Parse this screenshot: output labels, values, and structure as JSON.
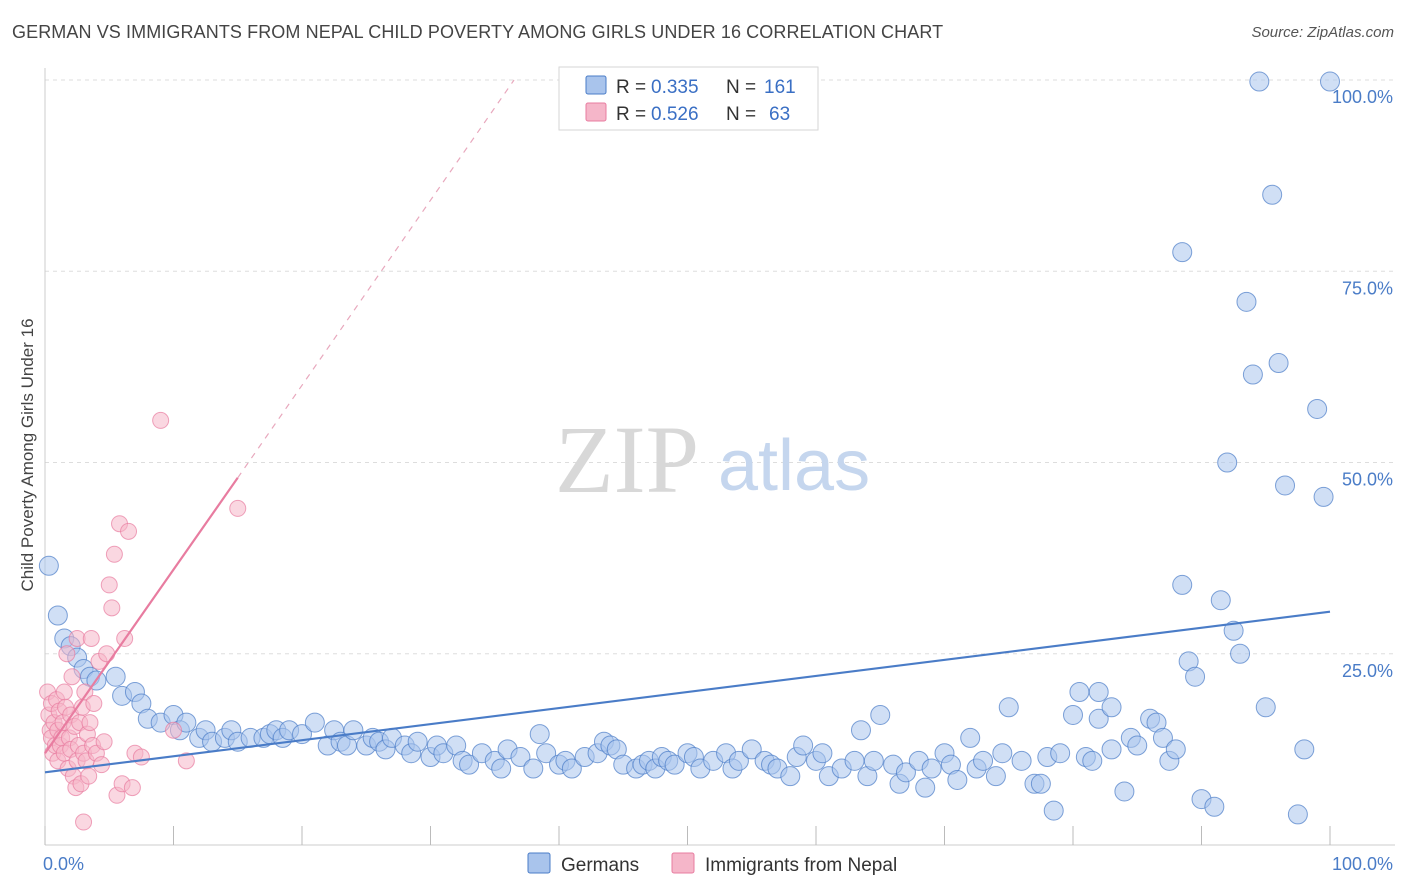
{
  "title": "GERMAN VS IMMIGRANTS FROM NEPAL CHILD POVERTY AMONG GIRLS UNDER 16 CORRELATION CHART",
  "source": "Source: ZipAtlas.com",
  "watermark": {
    "zip": "ZIP",
    "atlas": "atlas"
  },
  "colors": {
    "germans": "#4a7cc7",
    "nepal": "#e87ca0",
    "germans_fill": "#a9c4ec",
    "nepal_fill": "#f5b6c9"
  },
  "legend": {
    "rows": [
      {
        "r_label": "R =",
        "r_value": "0.335",
        "n_label": "N =",
        "n_value": "161"
      },
      {
        "r_label": "R =",
        "r_value": "0.526",
        "n_label": "N =",
        "n_value": "63"
      }
    ]
  },
  "chart_data": {
    "type": "scatter",
    "ylabel": "Child Poverty Among Girls Under 16",
    "xlim": [
      0,
      100
    ],
    "ylim": [
      0,
      100
    ],
    "yticks": [
      {
        "value": 25,
        "label": "25.0%"
      },
      {
        "value": 50,
        "label": "50.0%"
      },
      {
        "value": 75,
        "label": "75.0%"
      },
      {
        "value": 100,
        "label": "100.0%"
      }
    ],
    "xticks": [
      {
        "value": 0,
        "label": "0.0%"
      },
      {
        "value": 100,
        "label": "100.0%"
      }
    ],
    "grid": true,
    "legend_position": "top-center",
    "series": [
      {
        "name": "Germans",
        "r": 0.335,
        "n": 161,
        "trend": {
          "x": [
            0,
            100
          ],
          "y": [
            9.5,
            30.5
          ]
        },
        "points": [
          [
            0.3,
            36.5
          ],
          [
            1,
            30
          ],
          [
            1.5,
            27
          ],
          [
            2,
            26
          ],
          [
            2.5,
            24.5
          ],
          [
            3,
            23
          ],
          [
            3.5,
            22
          ],
          [
            4,
            21.5
          ],
          [
            5.5,
            22
          ],
          [
            6,
            19.5
          ],
          [
            7,
            20
          ],
          [
            7.5,
            18.5
          ],
          [
            8,
            16.5
          ],
          [
            9,
            16
          ],
          [
            10,
            17
          ],
          [
            10.5,
            15
          ],
          [
            11,
            16
          ],
          [
            12,
            14
          ],
          [
            12.5,
            15
          ],
          [
            13,
            13.5
          ],
          [
            14,
            14
          ],
          [
            14.5,
            15
          ],
          [
            15,
            13.5
          ],
          [
            16,
            14
          ],
          [
            17,
            14
          ],
          [
            17.5,
            14.5
          ],
          [
            18,
            15
          ],
          [
            18.5,
            14
          ],
          [
            19,
            15
          ],
          [
            20,
            14.5
          ],
          [
            21,
            16
          ],
          [
            22,
            13
          ],
          [
            22.5,
            15
          ],
          [
            23,
            13.5
          ],
          [
            23.5,
            13
          ],
          [
            24,
            15
          ],
          [
            25,
            13
          ],
          [
            25.5,
            14
          ],
          [
            26,
            13.5
          ],
          [
            26.5,
            12.5
          ],
          [
            27,
            14
          ],
          [
            28,
            13
          ],
          [
            28.5,
            12
          ],
          [
            29,
            13.5
          ],
          [
            30,
            11.5
          ],
          [
            30.5,
            13
          ],
          [
            31,
            12
          ],
          [
            32,
            13
          ],
          [
            32.5,
            11
          ],
          [
            33,
            10.5
          ],
          [
            34,
            12
          ],
          [
            35,
            11
          ],
          [
            35.5,
            10
          ],
          [
            36,
            12.5
          ],
          [
            37,
            11.5
          ],
          [
            38,
            10
          ],
          [
            38.5,
            14.5
          ],
          [
            39,
            12
          ],
          [
            40,
            10.5
          ],
          [
            40.5,
            11
          ],
          [
            41,
            10
          ],
          [
            42,
            11.5
          ],
          [
            43,
            12
          ],
          [
            43.5,
            13.5
          ],
          [
            44,
            13
          ],
          [
            44.5,
            12.5
          ],
          [
            45,
            10.5
          ],
          [
            46,
            10
          ],
          [
            46.5,
            10.5
          ],
          [
            47,
            11
          ],
          [
            47.5,
            10
          ],
          [
            48,
            11.5
          ],
          [
            48.5,
            11
          ],
          [
            49,
            10.5
          ],
          [
            50,
            12
          ],
          [
            50.5,
            11.5
          ],
          [
            51,
            10
          ],
          [
            52,
            11
          ],
          [
            53,
            12
          ],
          [
            53.5,
            10
          ],
          [
            54,
            11
          ],
          [
            55,
            12.5
          ],
          [
            56,
            11
          ],
          [
            56.5,
            10.5
          ],
          [
            57,
            10
          ],
          [
            58,
            9
          ],
          [
            58.5,
            11.5
          ],
          [
            59,
            13
          ],
          [
            60,
            11
          ],
          [
            60.5,
            12
          ],
          [
            61,
            9
          ],
          [
            62,
            10
          ],
          [
            63,
            11
          ],
          [
            63.5,
            15
          ],
          [
            64,
            9
          ],
          [
            64.5,
            11
          ],
          [
            65,
            17
          ],
          [
            66,
            10.5
          ],
          [
            66.5,
            8
          ],
          [
            67,
            9.5
          ],
          [
            68,
            11
          ],
          [
            68.5,
            7.5
          ],
          [
            69,
            10
          ],
          [
            70,
            12
          ],
          [
            70.5,
            10.5
          ],
          [
            71,
            8.5
          ],
          [
            72,
            14
          ],
          [
            72.5,
            10
          ],
          [
            73,
            11
          ],
          [
            74,
            9
          ],
          [
            74.5,
            12
          ],
          [
            75,
            18
          ],
          [
            76,
            11
          ],
          [
            77,
            8
          ],
          [
            77.5,
            8
          ],
          [
            78,
            11.5
          ],
          [
            78.5,
            4.5
          ],
          [
            79,
            12
          ],
          [
            80,
            17
          ],
          [
            81,
            11.5
          ],
          [
            81.5,
            11
          ],
          [
            82,
            16.5
          ],
          [
            83,
            12.5
          ],
          [
            84,
            7
          ],
          [
            84.5,
            14
          ],
          [
            85,
            13
          ],
          [
            86,
            16.5
          ],
          [
            86.5,
            16
          ],
          [
            87,
            14
          ],
          [
            87.5,
            11
          ],
          [
            88,
            12.5
          ],
          [
            88.5,
            34
          ],
          [
            89,
            24
          ],
          [
            89.5,
            22
          ],
          [
            90,
            6
          ],
          [
            91,
            5
          ],
          [
            91.5,
            32
          ],
          [
            92,
            50
          ],
          [
            92.5,
            28
          ],
          [
            93,
            25
          ],
          [
            93.5,
            71
          ],
          [
            94,
            61.5
          ],
          [
            95,
            18
          ],
          [
            95.5,
            85
          ],
          [
            96,
            63
          ],
          [
            96.5,
            47
          ],
          [
            97.5,
            4
          ],
          [
            98,
            12.5
          ],
          [
            99,
            57
          ],
          [
            99.5,
            45.5
          ],
          [
            94.5,
            99.8
          ],
          [
            100,
            99.8
          ],
          [
            88.5,
            77.5
          ],
          [
            82,
            20
          ],
          [
            83,
            18
          ],
          [
            80.5,
            20
          ]
        ]
      },
      {
        "name": "Immigrants from Nepal",
        "r": 0.526,
        "n": 63,
        "trend": {
          "x": [
            0,
            15
          ],
          "y": [
            12,
            48
          ]
        },
        "trend_dashed": {
          "x": [
            15,
            36.5
          ],
          "y": [
            48,
            100
          ]
        },
        "points": [
          [
            0.2,
            20
          ],
          [
            0.3,
            17
          ],
          [
            0.4,
            15
          ],
          [
            0.5,
            14
          ],
          [
            0.5,
            18.5
          ],
          [
            0.6,
            12
          ],
          [
            0.7,
            16
          ],
          [
            0.8,
            13
          ],
          [
            0.9,
            19
          ],
          [
            1,
            11
          ],
          [
            1,
            15
          ],
          [
            1.1,
            17.5
          ],
          [
            1.2,
            13
          ],
          [
            1.3,
            14
          ],
          [
            1.4,
            16
          ],
          [
            1.5,
            12
          ],
          [
            1.5,
            20
          ],
          [
            1.6,
            18
          ],
          [
            1.7,
            25
          ],
          [
            1.8,
            10
          ],
          [
            1.9,
            14
          ],
          [
            2,
            12.5
          ],
          [
            2,
            17
          ],
          [
            2.1,
            22
          ],
          [
            2.2,
            9
          ],
          [
            2.3,
            15.5
          ],
          [
            2.4,
            7.5
          ],
          [
            2.5,
            11
          ],
          [
            2.5,
            27
          ],
          [
            2.6,
            13
          ],
          [
            2.7,
            16
          ],
          [
            2.8,
            8
          ],
          [
            2.9,
            18
          ],
          [
            3,
            12
          ],
          [
            3,
            3
          ],
          [
            3.1,
            20
          ],
          [
            3.2,
            11
          ],
          [
            3.3,
            14.5
          ],
          [
            3.4,
            9
          ],
          [
            3.5,
            16
          ],
          [
            3.6,
            27
          ],
          [
            3.7,
            13
          ],
          [
            3.8,
            18.5
          ],
          [
            4,
            12
          ],
          [
            4.2,
            24
          ],
          [
            4.4,
            10.5
          ],
          [
            4.6,
            13.5
          ],
          [
            4.8,
            25
          ],
          [
            5,
            34
          ],
          [
            5.2,
            31
          ],
          [
            5.4,
            38
          ],
          [
            5.6,
            6.5
          ],
          [
            5.8,
            42
          ],
          [
            6,
            8
          ],
          [
            6.2,
            27
          ],
          [
            6.5,
            41
          ],
          [
            6.8,
            7.5
          ],
          [
            7,
            12
          ],
          [
            7.5,
            11.5
          ],
          [
            9,
            55.5
          ],
          [
            10,
            15
          ],
          [
            11,
            11
          ],
          [
            15,
            44
          ]
        ]
      }
    ]
  },
  "bottom_legend": [
    {
      "label": "Germans"
    },
    {
      "label": "Immigrants from Nepal"
    }
  ]
}
